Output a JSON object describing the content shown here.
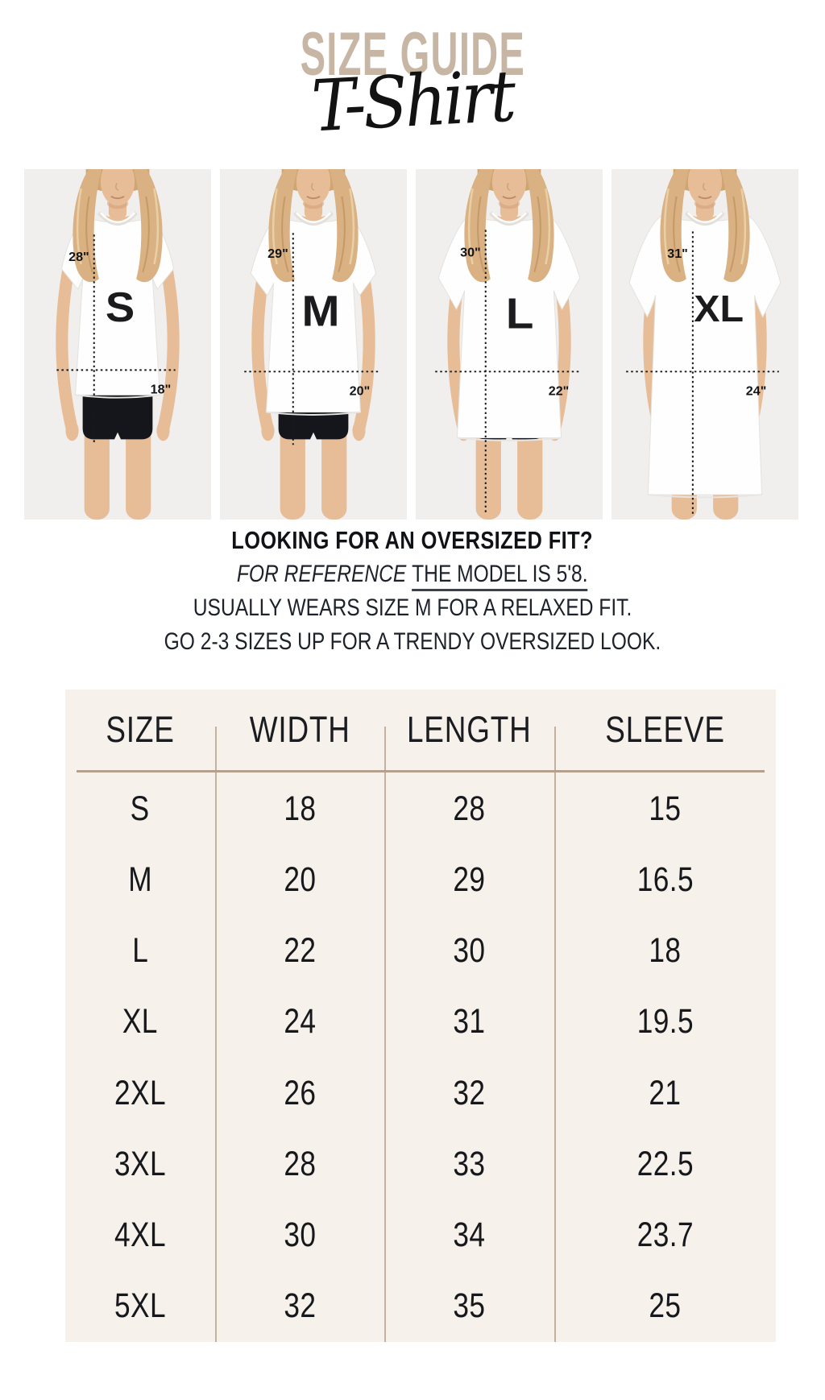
{
  "theme": {
    "accent": "#c7b6a3",
    "table_bg": "#f6f1ea",
    "divider": "#c3b2a0",
    "photo_bg": "#f0efee",
    "underline": "#3a4252"
  },
  "header": {
    "title": "SIZE GUIDE",
    "subtitle": "T-Shirt"
  },
  "models": [
    {
      "size": "S",
      "length": "28\"",
      "width": "18\""
    },
    {
      "size": "M",
      "length": "29\"",
      "width": "20\""
    },
    {
      "size": "L",
      "length": "30\"",
      "width": "22\""
    },
    {
      "size": "XL",
      "length": "31\"",
      "width": "24\""
    }
  ],
  "note": {
    "heading": "LOOKING FOR AN OVERSIZED FIT?",
    "reference_italic": "FOR REFERENCE",
    "reference_underlined": "THE MODEL IS 5'8.",
    "line3": "USUALLY WEARS SIZE M FOR A RELAXED FIT.",
    "line4": "GO 2-3 SIZES UP FOR A TRENDY OVERSIZED LOOK."
  },
  "size_table": {
    "headers": [
      "SIZE",
      "WIDTH",
      "LENGTH",
      "SLEEVE"
    ],
    "rows": [
      [
        "S",
        "18",
        "28",
        "15"
      ],
      [
        "M",
        "20",
        "29",
        "16.5"
      ],
      [
        "L",
        "22",
        "30",
        "18"
      ],
      [
        "XL",
        "24",
        "31",
        "19.5"
      ],
      [
        "2XL",
        "26",
        "32",
        "21"
      ],
      [
        "3XL",
        "28",
        "33",
        "22.5"
      ],
      [
        "4XL",
        "30",
        "34",
        "23.7"
      ],
      [
        "5XL",
        "32",
        "35",
        "25"
      ]
    ]
  },
  "chart_data": {
    "type": "table",
    "title": "SIZE GUIDE T-Shirt",
    "columns": [
      "SIZE",
      "WIDTH",
      "LENGTH",
      "SLEEVE"
    ],
    "rows": [
      [
        "S",
        18,
        28,
        15
      ],
      [
        "M",
        20,
        29,
        16.5
      ],
      [
        "L",
        22,
        30,
        18
      ],
      [
        "XL",
        24,
        31,
        19.5
      ],
      [
        "2XL",
        26,
        32,
        21
      ],
      [
        "3XL",
        28,
        33,
        22.5
      ],
      [
        "4XL",
        30,
        34,
        23.7
      ],
      [
        "5XL",
        32,
        35,
        25
      ]
    ],
    "model_measurements": [
      {
        "size": "S",
        "length_in": 28,
        "width_in": 18
      },
      {
        "size": "M",
        "length_in": 29,
        "width_in": 20
      },
      {
        "size": "L",
        "length_in": 30,
        "width_in": 22
      },
      {
        "size": "XL",
        "length_in": 31,
        "width_in": 24
      }
    ]
  }
}
